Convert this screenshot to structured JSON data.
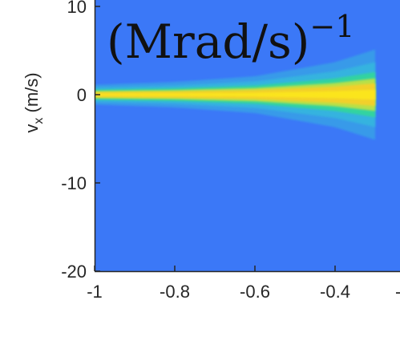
{
  "chart_data": {
    "type": "heatmap",
    "title": "",
    "annotation": {
      "main": "(Mrad/s)",
      "superscript": "−1"
    },
    "ylabel": {
      "symbol": "v",
      "subscript": "x",
      "unit": " (m/s)"
    },
    "xlabel": "",
    "x_ticks": [
      {
        "value": -1,
        "label": "-1"
      },
      {
        "value": -0.8,
        "label": "-0.8"
      },
      {
        "value": -0.6,
        "label": "-0.6"
      },
      {
        "value": -0.4,
        "label": "-0.4"
      }
    ],
    "y_ticks": [
      {
        "value": 10,
        "label": "10"
      },
      {
        "value": 0,
        "label": "0"
      },
      {
        "value": -10,
        "label": "-10"
      },
      {
        "value": -20,
        "label": "-20"
      }
    ],
    "xlim": [
      -1,
      -0.3
    ],
    "ylim": [
      -20,
      10
    ],
    "colors": {
      "background": "#3b78f7",
      "colormap": [
        "#3b78f7",
        "#33b6de",
        "#33d3a0",
        "#b7e04a",
        "#f2d02a",
        "#fbe51b"
      ]
    },
    "band": {
      "center_y": 0,
      "x": [
        -1,
        -0.8,
        -0.6,
        -0.4,
        -0.3
      ],
      "width": [
        0.7,
        0.9,
        1.3,
        2.3,
        3.2
      ],
      "peak": [
        0.9,
        0.92,
        0.95,
        0.98,
        1.0
      ]
    }
  }
}
